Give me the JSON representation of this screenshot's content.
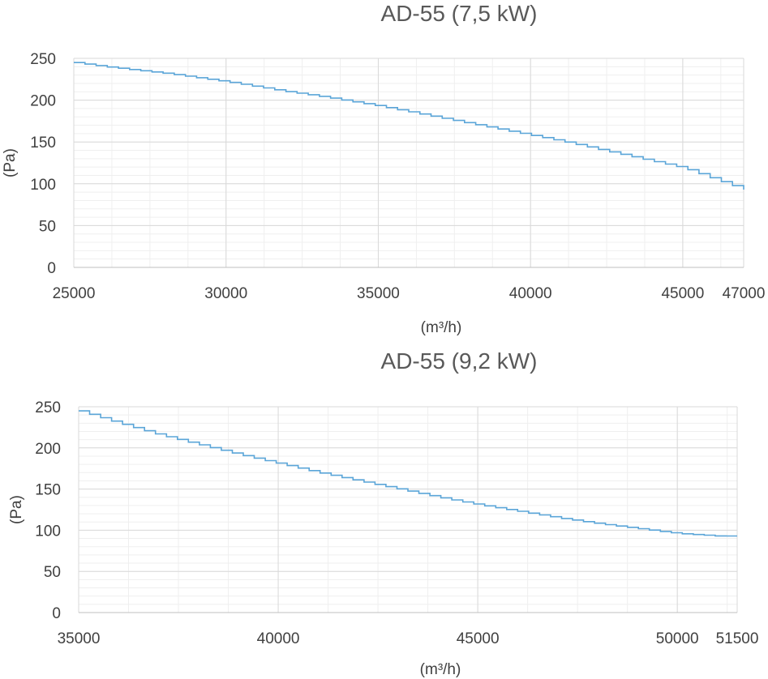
{
  "chart_data": [
    {
      "type": "line",
      "title": "AD-55 (7,5 kW)",
      "xlabel": "(m³/h)",
      "ylabel": "(Pa)",
      "xlim": [
        25000,
        47000
      ],
      "ylim": [
        0,
        250
      ],
      "x_ticks": [
        "25000",
        "30000",
        "35000",
        "40000",
        "45000",
        "47000"
      ],
      "y_ticks": [
        "0",
        "50",
        "100",
        "150",
        "200",
        "250"
      ],
      "grid": true,
      "color": "#5aa5d8",
      "series": [
        {
          "x": [
            25000,
            26000,
            27000,
            28000,
            29000,
            30000,
            31000,
            32000,
            33000,
            34000,
            35000,
            36000,
            37000,
            38000,
            39000,
            40000,
            41000,
            42000,
            43000,
            44000,
            45000,
            46000,
            47000
          ],
          "values": [
            245,
            240,
            236,
            232,
            227,
            222,
            216,
            210,
            205,
            199,
            193,
            186,
            179,
            172,
            165,
            158,
            151,
            143,
            135,
            127,
            119,
            106,
            93
          ]
        }
      ]
    },
    {
      "type": "line",
      "title": "AD-55 (9,2 kW)",
      "xlabel": "(m³/h)",
      "ylabel": "(Pa)",
      "xlim": [
        35000,
        51500
      ],
      "ylim": [
        0,
        250
      ],
      "x_ticks": [
        "35000",
        "40000",
        "45000",
        "50000",
        "51500"
      ],
      "y_ticks": [
        "0",
        "50",
        "100",
        "150",
        "200",
        "250"
      ],
      "grid": true,
      "color": "#5aa5d8",
      "series": [
        {
          "x": [
            35000,
            36000,
            37000,
            38000,
            39000,
            40000,
            41000,
            42000,
            43000,
            44000,
            45000,
            46000,
            47000,
            48000,
            49000,
            50000,
            51000,
            51500
          ],
          "values": [
            245,
            230,
            216,
            204,
            192,
            181,
            170,
            160,
            150,
            140,
            131,
            123,
            115,
            108,
            102,
            96,
            93,
            93
          ]
        }
      ]
    }
  ]
}
